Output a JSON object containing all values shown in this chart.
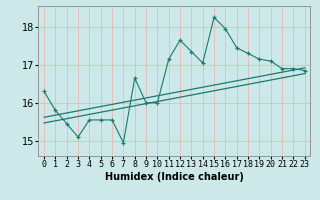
{
  "title": "",
  "xlabel": "Humidex (Indice chaleur)",
  "background_color": "#cce8e8",
  "grid_color": "#e8b8b8",
  "line_color": "#1a7a6e",
  "xlim": [
    -0.5,
    23.5
  ],
  "ylim": [
    14.6,
    18.55
  ],
  "yticks": [
    15,
    16,
    17,
    18
  ],
  "xticks": [
    0,
    1,
    2,
    3,
    4,
    5,
    6,
    7,
    8,
    9,
    10,
    11,
    12,
    13,
    14,
    15,
    16,
    17,
    18,
    19,
    20,
    21,
    22,
    23
  ],
  "x": [
    0,
    1,
    2,
    3,
    4,
    5,
    6,
    7,
    8,
    9,
    10,
    11,
    12,
    13,
    14,
    15,
    16,
    17,
    18,
    19,
    20,
    21,
    22,
    23
  ],
  "y": [
    16.3,
    15.8,
    15.45,
    15.1,
    15.55,
    15.55,
    15.55,
    14.95,
    16.65,
    16.0,
    16.0,
    17.15,
    17.65,
    17.35,
    17.05,
    18.25,
    17.95,
    17.45,
    17.3,
    17.15,
    17.1,
    16.9,
    16.9,
    16.85
  ],
  "trend1_y": [
    15.62,
    16.92
  ],
  "trend2_y": [
    15.47,
    16.77
  ],
  "trend_x": [
    0,
    23
  ],
  "xlabel_fontsize": 7,
  "tick_fontsize": 6,
  "ytick_fontsize": 7
}
